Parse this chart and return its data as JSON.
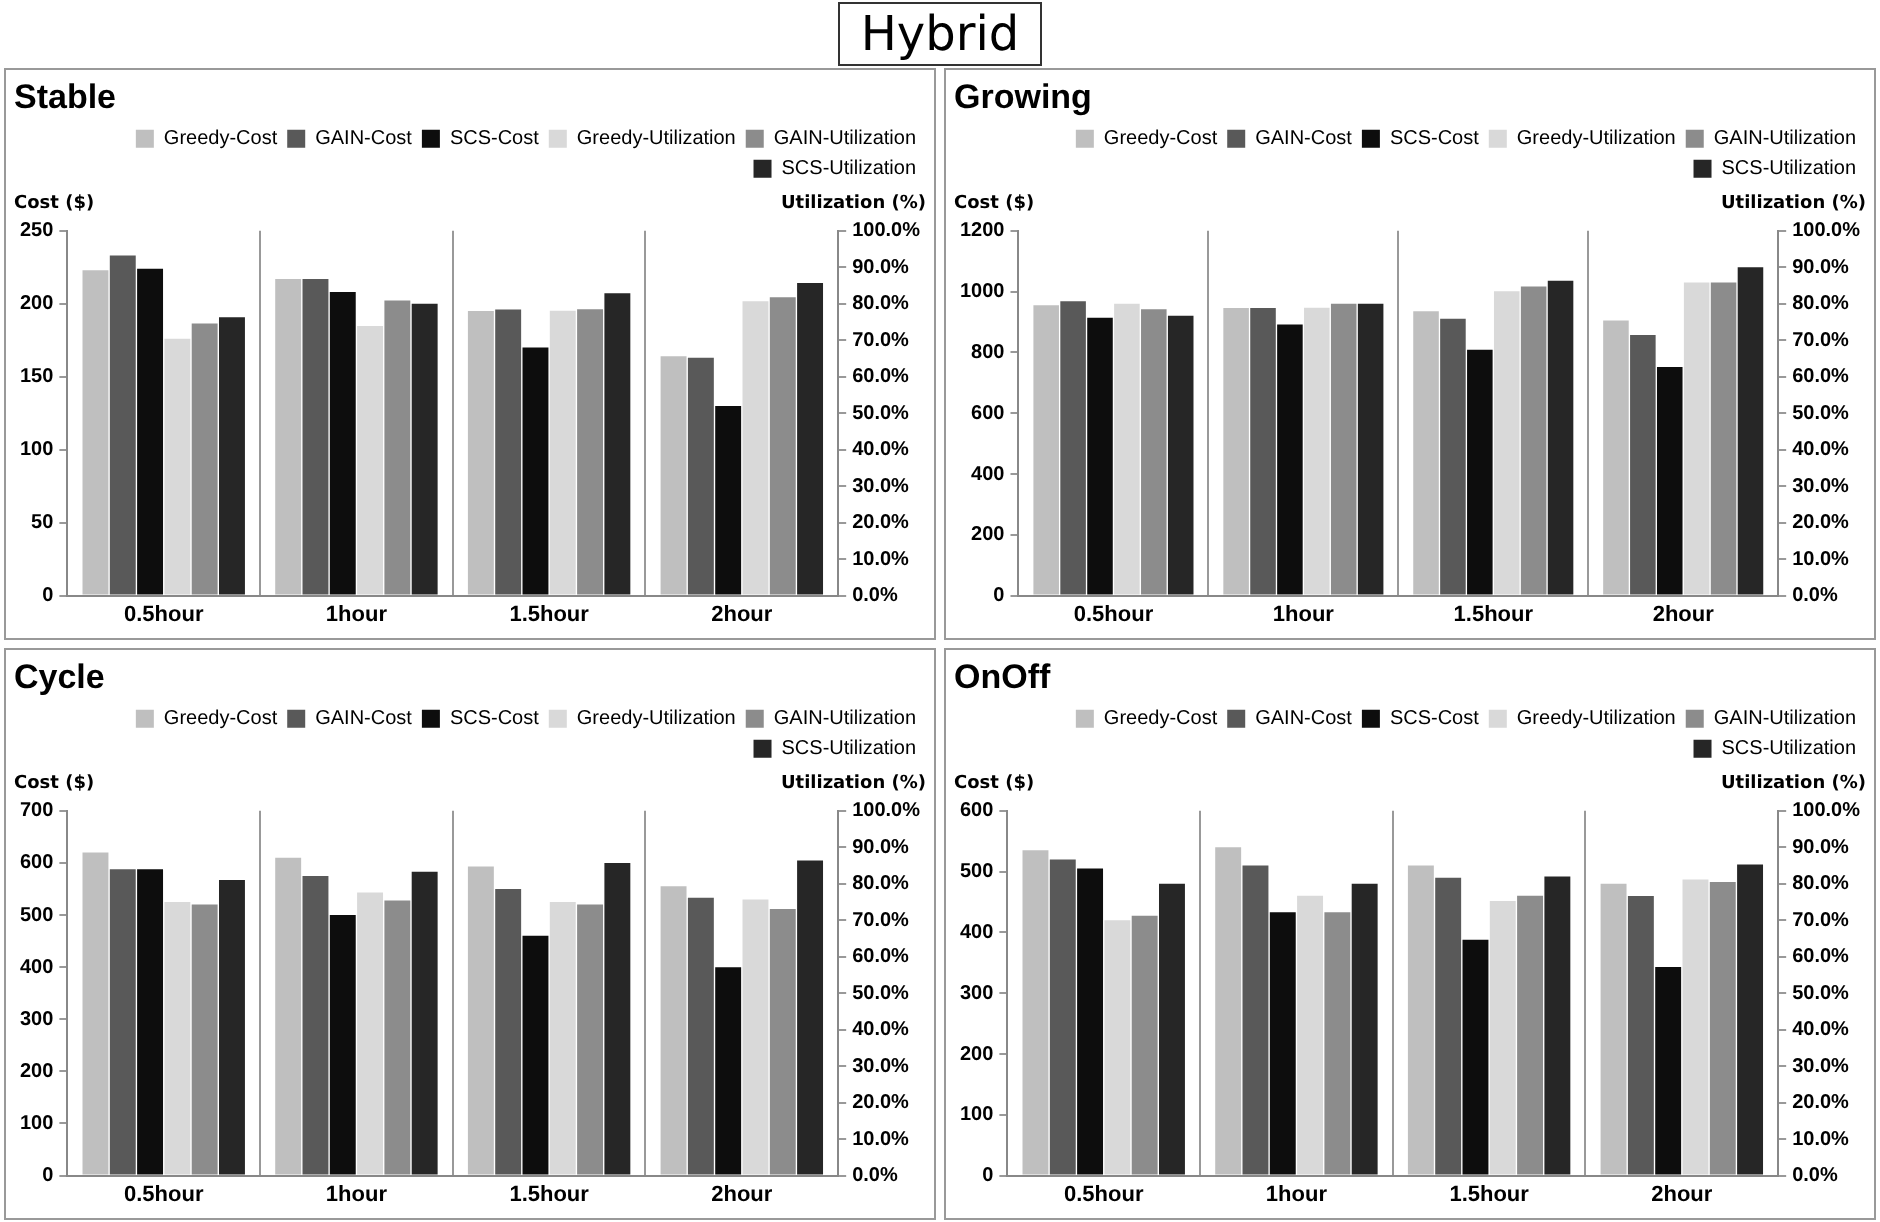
{
  "chart_data": [
    {
      "type": "bar",
      "title": "Stable",
      "annotations": [
        "Hybrid"
      ],
      "ylabel": "Cost ($)",
      "y2label": "Utilization (%)",
      "categories": [
        "0.5hour",
        "1hour",
        "1.5hour",
        "2hour"
      ],
      "series": [
        {
          "name": "Greedy-Cost",
          "color": "#bfbfbf",
          "values": [
            223,
            217,
            195,
            164
          ]
        },
        {
          "name": "GAIN-Cost",
          "color": "#595959",
          "values": [
            233,
            217,
            196,
            163
          ]
        },
        {
          "name": "SCS-Cost",
          "color": "#0d0d0d",
          "values": [
            224,
            208,
            170,
            130
          ]
        },
        {
          "name": "Greedy-Utilization",
          "color": "#d9d9d9",
          "axis": "y2",
          "values": [
            70.4,
            73.9,
            78.1,
            80.7
          ]
        },
        {
          "name": "GAIN-Utilization",
          "color": "#8c8c8c",
          "axis": "y2",
          "values": [
            74.6,
            80.9,
            78.5,
            81.8
          ]
        },
        {
          "name": "SCS-Utilization",
          "color": "#262626",
          "axis": "y2",
          "values": [
            76.3,
            80,
            82.9,
            85.7
          ]
        }
      ],
      "ylim": [
        0,
        250
      ],
      "yticks": [
        0,
        50,
        100,
        150,
        200,
        250
      ],
      "y2lim": [
        0,
        100
      ],
      "y2ticks": [
        {
          "value": 0,
          "label": "0.0%"
        },
        {
          "value": 10,
          "label": "10.0%"
        },
        {
          "value": 20,
          "label": "20.0%"
        },
        {
          "value": 30,
          "label": "30.0%"
        },
        {
          "value": 40,
          "label": "40.0%"
        },
        {
          "value": 50,
          "label": "50.0%"
        },
        {
          "value": 60,
          "label": "60.0%"
        },
        {
          "value": 70,
          "label": "70.0%"
        },
        {
          "value": 80,
          "label": "80.0%"
        },
        {
          "value": 90,
          "label": "90.0%"
        },
        {
          "value": 100,
          "label": "100.0%"
        }
      ],
      "grid": "x",
      "legend": "top"
    },
    {
      "type": "bar",
      "title": "Growing",
      "ylabel": "Cost ($)",
      "y2label": "Utilization (%)",
      "categories": [
        "0.5hour",
        "1hour",
        "1.5hour",
        "2hour"
      ],
      "series": [
        {
          "name": "Greedy-Cost",
          "color": "#bfbfbf",
          "values": [
            955,
            946,
            935,
            905
          ]
        },
        {
          "name": "GAIN-Cost",
          "color": "#595959",
          "values": [
            968,
            946,
            911,
            857
          ]
        },
        {
          "name": "SCS-Cost",
          "color": "#0d0d0d",
          "values": [
            914,
            892,
            809,
            752
          ]
        },
        {
          "name": "Greedy-Utilization",
          "color": "#d9d9d9",
          "axis": "y2",
          "values": [
            80,
            78.9,
            83.4,
            85.8
          ]
        },
        {
          "name": "GAIN-Utilization",
          "color": "#8c8c8c",
          "axis": "y2",
          "values": [
            78.5,
            80,
            84.7,
            85.8
          ]
        },
        {
          "name": "SCS-Utilization",
          "color": "#262626",
          "axis": "y2",
          "values": [
            76.7,
            80,
            86.3,
            90
          ]
        }
      ],
      "ylim": [
        0,
        1200
      ],
      "yticks": [
        0,
        200,
        400,
        600,
        800,
        1000,
        1200
      ],
      "y2lim": [
        0,
        100
      ],
      "y2ticks": [
        {
          "value": 0,
          "label": "0.0%"
        },
        {
          "value": 10,
          "label": "10.0%"
        },
        {
          "value": 20,
          "label": "20.0%"
        },
        {
          "value": 30,
          "label": "30.0%"
        },
        {
          "value": 40,
          "label": "40.0%"
        },
        {
          "value": 50,
          "label": "50.0%"
        },
        {
          "value": 60,
          "label": "60.0%"
        },
        {
          "value": 70,
          "label": "70.0%"
        },
        {
          "value": 80,
          "label": "80.0%"
        },
        {
          "value": 90,
          "label": "90.0%"
        },
        {
          "value": 100,
          "label": "100.0%"
        }
      ],
      "grid": "x",
      "legend": "top"
    },
    {
      "type": "bar",
      "title": "Cycle",
      "ylabel": "Cost ($)",
      "y2label": "Utilization (%)",
      "categories": [
        "0.5hour",
        "1hour",
        "1.5hour",
        "2hour"
      ],
      "series": [
        {
          "name": "Greedy-Cost",
          "color": "#bfbfbf",
          "values": [
            620,
            610,
            593,
            555
          ]
        },
        {
          "name": "GAIN-Cost",
          "color": "#595959",
          "values": [
            588,
            575,
            550,
            533
          ]
        },
        {
          "name": "SCS-Cost",
          "color": "#0d0d0d",
          "values": [
            588,
            500,
            460,
            400
          ]
        },
        {
          "name": "Greedy-Utilization",
          "color": "#d9d9d9",
          "axis": "y2",
          "values": [
            75,
            77.6,
            75,
            75.7
          ]
        },
        {
          "name": "GAIN-Utilization",
          "color": "#8c8c8c",
          "axis": "y2",
          "values": [
            74.3,
            75.4,
            74.3,
            73.1
          ]
        },
        {
          "name": "SCS-Utilization",
          "color": "#262626",
          "axis": "y2",
          "values": [
            81,
            83.3,
            85.7,
            86.4
          ]
        }
      ],
      "ylim": [
        0,
        700
      ],
      "yticks": [
        0,
        100,
        200,
        300,
        400,
        500,
        600,
        700
      ],
      "y2lim": [
        0,
        100
      ],
      "y2ticks": [
        {
          "value": 0,
          "label": "0.0%"
        },
        {
          "value": 10,
          "label": "10.0%"
        },
        {
          "value": 20,
          "label": "20.0%"
        },
        {
          "value": 30,
          "label": "30.0%"
        },
        {
          "value": 40,
          "label": "40.0%"
        },
        {
          "value": 50,
          "label": "50.0%"
        },
        {
          "value": 60,
          "label": "60.0%"
        },
        {
          "value": 70,
          "label": "70.0%"
        },
        {
          "value": 80,
          "label": "80.0%"
        },
        {
          "value": 90,
          "label": "90.0%"
        },
        {
          "value": 100,
          "label": "100.0%"
        }
      ],
      "grid": "x",
      "legend": "top"
    },
    {
      "type": "bar",
      "title": "OnOff",
      "ylabel": "Cost ($)",
      "y2label": "Utilization (%)",
      "categories": [
        "0.5hour",
        "1hour",
        "1.5hour",
        "2hour"
      ],
      "series": [
        {
          "name": "Greedy-Cost",
          "color": "#bfbfbf",
          "values": [
            535,
            540,
            510,
            480
          ]
        },
        {
          "name": "GAIN-Cost",
          "color": "#595959",
          "values": [
            520,
            510,
            490,
            460
          ]
        },
        {
          "name": "SCS-Cost",
          "color": "#0d0d0d",
          "values": [
            505,
            433,
            388,
            343
          ]
        },
        {
          "name": "Greedy-Utilization",
          "color": "#d9d9d9",
          "axis": "y2",
          "values": [
            70,
            76.7,
            75.3,
            81.2
          ]
        },
        {
          "name": "GAIN-Utilization",
          "color": "#8c8c8c",
          "axis": "y2",
          "values": [
            71.2,
            72.2,
            76.7,
            80.5
          ]
        },
        {
          "name": "SCS-Utilization",
          "color": "#262626",
          "axis": "y2",
          "values": [
            80,
            80,
            82,
            85.3
          ]
        }
      ],
      "ylim": [
        0,
        600
      ],
      "yticks": [
        0,
        100,
        200,
        300,
        400,
        500,
        600
      ],
      "y2lim": [
        0,
        100
      ],
      "y2ticks": [
        {
          "value": 0,
          "label": "0.0%"
        },
        {
          "value": 10,
          "label": "10.0%"
        },
        {
          "value": 20,
          "label": "20.0%"
        },
        {
          "value": 30,
          "label": "30.0%"
        },
        {
          "value": 40,
          "label": "40.0%"
        },
        {
          "value": 50,
          "label": "50.0%"
        },
        {
          "value": 60,
          "label": "60.0%"
        },
        {
          "value": 70,
          "label": "70.0%"
        },
        {
          "value": 80,
          "label": "80.0%"
        },
        {
          "value": 90,
          "label": "90.0%"
        },
        {
          "value": 100,
          "label": "100.0%"
        }
      ],
      "grid": "x",
      "legend": "top"
    }
  ]
}
